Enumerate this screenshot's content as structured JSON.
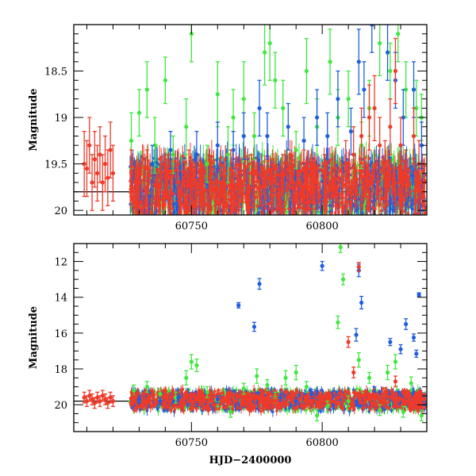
{
  "chart_data": [
    {
      "type": "scatter",
      "panel": "top",
      "xlabel": "",
      "ylabel": "Magnitude",
      "xlim": [
        60705,
        60840
      ],
      "ylim": [
        20.05,
        18.0
      ],
      "y_inverted": true,
      "x_ticks": [
        60750,
        60800
      ],
      "x_tick_labels": [
        "60750",
        "60800"
      ],
      "y_ticks": [
        18.5,
        19,
        19.5,
        20
      ],
      "y_tick_labels": [
        "18.5",
        "19",
        "19.5",
        "20"
      ],
      "reference_line": 19.8,
      "colors": {
        "g": "#3ee83e",
        "b": "#1f5fe0",
        "r": "#f03a28"
      },
      "series": [
        {
          "color": "#3ee83e",
          "points": [
            [
              60727,
              19.25,
              0.3
            ],
            [
              60730,
              18.95,
              0.25
            ],
            [
              60733,
              18.7,
              0.3
            ],
            [
              60736,
              19.3,
              0.3
            ],
            [
              60740,
              18.6,
              0.25
            ],
            [
              60743,
              19.4,
              0.2
            ],
            [
              60748,
              19.1,
              0.3
            ],
            [
              60750,
              18.1,
              0.3
            ],
            [
              60756,
              19.5,
              0.2
            ],
            [
              60760,
              18.75,
              0.35
            ],
            [
              60764,
              19.4,
              0.3
            ],
            [
              60766,
              19.0,
              0.3
            ],
            [
              60770,
              18.8,
              0.4
            ],
            [
              60774,
              19.2,
              0.25
            ],
            [
              60778,
              18.3,
              0.35
            ],
            [
              60780,
              18.2,
              0.4
            ],
            [
              60782,
              18.6,
              0.3
            ],
            [
              60785,
              18.9,
              0.3
            ],
            [
              60790,
              19.35,
              0.2
            ],
            [
              60794,
              18.5,
              0.35
            ],
            [
              60798,
              19.1,
              0.3
            ],
            [
              60803,
              18.4,
              0.35
            ],
            [
              60806,
              19.0,
              0.3
            ],
            [
              60810,
              18.8,
              0.3
            ],
            [
              60815,
              19.3,
              0.25
            ],
            [
              60818,
              18.9,
              0.3
            ],
            [
              60822,
              18.2,
              0.35
            ],
            [
              60826,
              18.5,
              0.3
            ],
            [
              60829,
              18.1,
              0.3
            ],
            [
              60832,
              18.7,
              0.3
            ],
            [
              60836,
              18.9,
              0.3
            ],
            [
              60838,
              19.0,
              0.25
            ]
          ]
        },
        {
          "color": "#1f5fe0",
          "points": [
            [
              60735,
              19.5,
              0.2
            ],
            [
              60742,
              19.35,
              0.2
            ],
            [
              60752,
              19.4,
              0.25
            ],
            [
              60760,
              19.3,
              0.25
            ],
            [
              60766,
              19.35,
              0.2
            ],
            [
              60770,
              19.2,
              0.25
            ],
            [
              60776,
              18.9,
              0.3
            ],
            [
              60779,
              19.2,
              0.25
            ],
            [
              60787,
              19.1,
              0.25
            ],
            [
              60793,
              19.25,
              0.25
            ],
            [
              60798,
              19.0,
              0.3
            ],
            [
              60802,
              19.2,
              0.25
            ],
            [
              60806,
              18.8,
              0.3
            ],
            [
              60811,
              19.15,
              0.25
            ],
            [
              60814,
              18.4,
              0.35
            ],
            [
              60816,
              18.7,
              0.3
            ],
            [
              60819,
              18.0,
              0.3
            ],
            [
              60825,
              18.3,
              0.3
            ],
            [
              60828,
              18.6,
              0.3
            ],
            [
              60831,
              19.0,
              0.3
            ],
            [
              60835,
              18.7,
              0.3
            ],
            [
              60838,
              19.3,
              0.25
            ]
          ]
        },
        {
          "color": "#f03a28",
          "points": [
            [
              60709,
              19.5,
              0.35
            ],
            [
              60710,
              19.55,
              0.3
            ],
            [
              60711,
              19.3,
              0.3
            ],
            [
              60712,
              19.7,
              0.3
            ],
            [
              60713,
              19.45,
              0.3
            ],
            [
              60714,
              19.6,
              0.3
            ],
            [
              60715,
              19.4,
              0.3
            ],
            [
              60716,
              19.7,
              0.3
            ],
            [
              60717,
              19.5,
              0.3
            ],
            [
              60718,
              19.65,
              0.3
            ],
            [
              60719,
              19.35,
              0.3
            ],
            [
              60720,
              19.6,
              0.3
            ],
            [
              60727,
              19.6,
              0.25
            ],
            [
              60730,
              19.7,
              0.2
            ],
            [
              60733,
              19.55,
              0.2
            ],
            [
              60737,
              19.75,
              0.2
            ],
            [
              60741,
              19.6,
              0.2
            ],
            [
              60745,
              19.7,
              0.2
            ],
            [
              60749,
              19.55,
              0.2
            ],
            [
              60753,
              19.75,
              0.2
            ],
            [
              60757,
              19.65,
              0.2
            ],
            [
              60761,
              19.7,
              0.2
            ],
            [
              60765,
              19.55,
              0.2
            ],
            [
              60769,
              19.7,
              0.2
            ],
            [
              60773,
              19.6,
              0.2
            ],
            [
              60777,
              19.75,
              0.2
            ],
            [
              60781,
              19.65,
              0.2
            ],
            [
              60785,
              19.6,
              0.2
            ],
            [
              60789,
              19.7,
              0.2
            ],
            [
              60793,
              19.55,
              0.2
            ],
            [
              60797,
              19.7,
              0.2
            ],
            [
              60801,
              19.6,
              0.2
            ],
            [
              60805,
              19.75,
              0.2
            ],
            [
              60809,
              19.5,
              0.25
            ],
            [
              60812,
              19.4,
              0.3
            ],
            [
              60815,
              19.2,
              0.3
            ],
            [
              60818,
              19.0,
              0.35
            ],
            [
              60820,
              18.9,
              0.35
            ],
            [
              60822,
              19.3,
              0.3
            ],
            [
              60824,
              19.5,
              0.25
            ],
            [
              60826,
              19.1,
              0.3
            ],
            [
              60828,
              18.5,
              0.35
            ],
            [
              60830,
              19.3,
              0.3
            ],
            [
              60832,
              19.6,
              0.25
            ],
            [
              60835,
              19.2,
              0.3
            ],
            [
              60837,
              19.5,
              0.25
            ],
            [
              60839,
              19.7,
              0.2
            ]
          ]
        }
      ]
    },
    {
      "type": "scatter",
      "panel": "bottom",
      "xlabel": "HJD−2400000",
      "ylabel": "Magnitude",
      "xlim": [
        60705,
        60840
      ],
      "ylim": [
        21.5,
        11.0
      ],
      "y_inverted": true,
      "x_ticks": [
        60750,
        60800
      ],
      "x_tick_labels": [
        "60750",
        "60800"
      ],
      "y_ticks": [
        12,
        14,
        16,
        18,
        20
      ],
      "y_tick_labels": [
        "12",
        "14",
        "16",
        "18",
        "20"
      ],
      "reference_line": 19.8,
      "colors": {
        "g": "#3ee83e",
        "b": "#1f5fe0",
        "r": "#f03a28"
      },
      "series": [
        {
          "color": "#3ee83e",
          "points": [
            [
              60728,
              19.2,
              0.3
            ],
            [
              60733,
              19.0,
              0.3
            ],
            [
              60738,
              19.4,
              0.3
            ],
            [
              60744,
              19.6,
              0.3
            ],
            [
              60748,
              18.5,
              0.4
            ],
            [
              60750,
              17.6,
              0.4
            ],
            [
              60752,
              17.8,
              0.35
            ],
            [
              60756,
              19.3,
              0.3
            ],
            [
              60760,
              19.8,
              0.3
            ],
            [
              60765,
              20.4,
              0.3
            ],
            [
              60770,
              19.1,
              0.3
            ],
            [
              60775,
              18.4,
              0.4
            ],
            [
              60779,
              18.9,
              0.3
            ],
            [
              60782,
              19.6,
              0.3
            ],
            [
              60786,
              18.5,
              0.4
            ],
            [
              60790,
              18.2,
              0.4
            ],
            [
              60794,
              19.0,
              0.3
            ],
            [
              60798,
              20.6,
              0.3
            ],
            [
              60802,
              20.1,
              0.3
            ],
            [
              60806,
              15.4,
              0.35
            ],
            [
              60807,
              11.2,
              0.3
            ],
            [
              60808,
              13.0,
              0.3
            ],
            [
              60810,
              19.8,
              0.3
            ],
            [
              60814,
              17.5,
              0.4
            ],
            [
              60818,
              18.5,
              0.3
            ],
            [
              60822,
              20.3,
              0.3
            ],
            [
              60825,
              18.2,
              0.4
            ],
            [
              60828,
              17.6,
              0.4
            ],
            [
              60831,
              20.4,
              0.3
            ],
            [
              60834,
              18.8,
              0.35
            ],
            [
              60838,
              20.6,
              0.3
            ]
          ]
        },
        {
          "color": "#1f5fe0",
          "points": [
            [
              60730,
              19.7,
              0.2
            ],
            [
              60738,
              19.8,
              0.2
            ],
            [
              60745,
              19.6,
              0.2
            ],
            [
              60752,
              19.9,
              0.2
            ],
            [
              60760,
              19.7,
              0.2
            ],
            [
              60768,
              14.45,
              0.15
            ],
            [
              60774,
              15.65,
              0.25
            ],
            [
              60776,
              13.25,
              0.3
            ],
            [
              60784,
              19.6,
              0.2
            ],
            [
              60790,
              19.8,
              0.2
            ],
            [
              60796,
              19.4,
              0.25
            ],
            [
              60800,
              12.25,
              0.25
            ],
            [
              60806,
              19.5,
              0.25
            ],
            [
              60813,
              16.1,
              0.35
            ],
            [
              60814,
              12.5,
              0.35
            ],
            [
              60815,
              14.3,
              0.35
            ],
            [
              60820,
              19.3,
              0.3
            ],
            [
              60826,
              16.5,
              0.2
            ],
            [
              60830,
              16.9,
              0.25
            ],
            [
              60832,
              15.5,
              0.3
            ],
            [
              60835,
              16.25,
              0.2
            ],
            [
              60836,
              17.15,
              0.2
            ],
            [
              60837,
              13.85,
              0.1
            ],
            [
              60839,
              19.8,
              0.25
            ]
          ]
        },
        {
          "color": "#f03a28",
          "points": [
            [
              60709,
              19.6,
              0.3
            ],
            [
              60710,
              19.8,
              0.3
            ],
            [
              60711,
              19.5,
              0.3
            ],
            [
              60712,
              19.7,
              0.3
            ],
            [
              60713,
              19.9,
              0.3
            ],
            [
              60714,
              19.6,
              0.3
            ],
            [
              60715,
              19.8,
              0.3
            ],
            [
              60716,
              19.5,
              0.3
            ],
            [
              60717,
              19.7,
              0.3
            ],
            [
              60718,
              19.9,
              0.3
            ],
            [
              60719,
              19.6,
              0.3
            ],
            [
              60720,
              19.8,
              0.3
            ],
            [
              60728,
              19.7,
              0.2
            ],
            [
              60734,
              19.8,
              0.2
            ],
            [
              60740,
              19.6,
              0.2
            ],
            [
              60746,
              19.9,
              0.2
            ],
            [
              60752,
              19.7,
              0.2
            ],
            [
              60758,
              19.8,
              0.2
            ],
            [
              60764,
              19.6,
              0.2
            ],
            [
              60770,
              19.9,
              0.2
            ],
            [
              60776,
              19.7,
              0.2
            ],
            [
              60782,
              19.8,
              0.2
            ],
            [
              60788,
              19.6,
              0.2
            ],
            [
              60794,
              19.8,
              0.2
            ],
            [
              60800,
              19.7,
              0.2
            ],
            [
              60806,
              19.6,
              0.2
            ],
            [
              60810,
              16.5,
              0.3
            ],
            [
              60812,
              18.2,
              0.3
            ],
            [
              60814,
              12.3,
              0.25
            ],
            [
              60816,
              19.5,
              0.25
            ],
            [
              60820,
              19.6,
              0.25
            ],
            [
              60824,
              19.3,
              0.25
            ],
            [
              60828,
              18.7,
              0.3
            ],
            [
              60832,
              19.5,
              0.25
            ],
            [
              60836,
              19.6,
              0.25
            ],
            [
              60839,
              19.7,
              0.2
            ]
          ]
        }
      ]
    }
  ]
}
